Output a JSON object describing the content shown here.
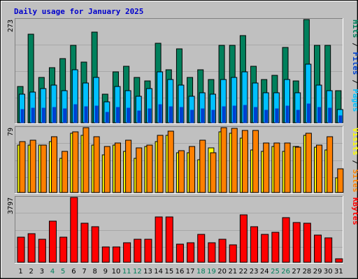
{
  "chart_data": {
    "type": "bar",
    "title": "Daily usage for January 2025",
    "categories": [
      "1",
      "2",
      "3",
      "4",
      "5",
      "6",
      "7",
      "8",
      "9",
      "10",
      "11",
      "12",
      "13",
      "14",
      "15",
      "16",
      "17",
      "18",
      "19",
      "20",
      "21",
      "22",
      "23",
      "24",
      "25",
      "26",
      "27",
      "28",
      "29",
      "30",
      "31"
    ],
    "weekend_days": [
      "4",
      "5",
      "11",
      "12",
      "18",
      "19",
      "25",
      "26"
    ],
    "colors": {
      "hits": "#00805c",
      "files": "#00c0ff",
      "pages": "#0040d0",
      "visits": "#ffff00",
      "sites": "#ff8000",
      "kbytes": "#ff0000",
      "weekday_label": "#000000",
      "weekend_label": "#00805c",
      "title": "#0000cc",
      "plot_bg": "#c0c0c0"
    },
    "panels": [
      {
        "id": "hits_files_pages",
        "ylabel_parts": [
          {
            "text": "Pages",
            "color": "#00c0ff"
          },
          {
            "text": " / ",
            "color": "#000000"
          },
          {
            "text": "Files",
            "color": "#0040d0"
          },
          {
            "text": " / ",
            "color": "#000000"
          },
          {
            "text": "Hits",
            "color": "#00805c"
          }
        ],
        "ymax_label": "273",
        "ymax": 273,
        "series": [
          {
            "name": "Hits",
            "color": "#00805c",
            "values": [
              95,
              235,
              120,
              145,
              170,
              205,
              160,
              240,
              75,
              135,
              150,
              120,
              110,
              210,
              140,
              195,
              120,
              140,
              115,
              205,
              205,
              230,
              150,
              115,
              125,
              200,
              110,
              273,
              205,
              205,
              85
            ]
          },
          {
            "name": "Files",
            "color": "#00c0ff",
            "values": [
              75,
              82,
              90,
              100,
              85,
              140,
              105,
              120,
              55,
              95,
              85,
              70,
              90,
              135,
              115,
              100,
              70,
              80,
              75,
              115,
              120,
              135,
              105,
              80,
              80,
              115,
              80,
              155,
              100,
              85,
              35
            ]
          },
          {
            "name": "Pages",
            "color": "#0040d0",
            "values": [
              35,
              38,
              38,
              40,
              36,
              48,
              42,
              44,
              28,
              40,
              38,
              32,
              36,
              48,
              42,
              40,
              34,
              36,
              34,
              42,
              44,
              46,
              40,
              34,
              36,
              44,
              34,
              50,
              40,
              38,
              18
            ]
          }
        ]
      },
      {
        "id": "visits_sites",
        "ylabel_parts": [
          {
            "text": "Sites",
            "color": "#ff8000"
          },
          {
            "text": " / ",
            "color": "#000000"
          },
          {
            "text": "Visits",
            "color": "#ffff00"
          }
        ],
        "ymax_label": "79",
        "ymax": 79,
        "series": [
          {
            "name": "Visits",
            "color": "#ffff00",
            "values": [
              58,
              58,
              58,
              62,
              42,
              72,
              70,
              58,
              46,
              58,
              50,
              42,
              56,
              62,
              70,
              48,
              48,
              40,
              54,
              74,
              72,
              66,
              52,
              50,
              56,
              50,
              56,
              70,
              55,
              52,
              18
            ]
          },
          {
            "name": "Sites",
            "color": "#ff8000",
            "values": [
              62,
              64,
              58,
              68,
              50,
              74,
              79,
              68,
              56,
              60,
              64,
              54,
              58,
              70,
              75,
              51,
              56,
              64,
              48,
              79,
              78,
              76,
              76,
              60,
              60,
              60,
              55,
              72,
              58,
              68,
              29
            ]
          }
        ]
      },
      {
        "id": "kbytes",
        "ylabel_parts": [
          {
            "text": "KBytes",
            "color": "#ff0000"
          }
        ],
        "ymax_label": "3797",
        "ymax": 3797,
        "series": [
          {
            "name": "KBytes",
            "color": "#ff0000",
            "values": [
              1450,
              1690,
              1330,
              2400,
              1480,
              3797,
              2300,
              2070,
              900,
              900,
              1140,
              1330,
              1350,
              2670,
              2640,
              1060,
              1150,
              1630,
              1140,
              1340,
              1040,
              2760,
              2070,
              1640,
              1740,
              2610,
              2340,
              2300,
              1580,
              1420,
              210
            ]
          }
        ]
      }
    ]
  }
}
